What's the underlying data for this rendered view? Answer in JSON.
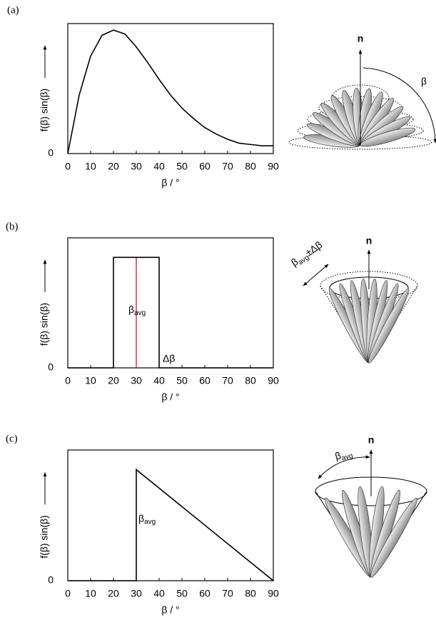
{
  "chart_data": [
    {
      "type": "line",
      "label": "(a)",
      "xlabel": "β / °",
      "ylabel": "f(β) sin(β)",
      "x": [
        0,
        5,
        10,
        15,
        20,
        25,
        30,
        35,
        40,
        45,
        50,
        55,
        60,
        65,
        70,
        75,
        80,
        85,
        90
      ],
      "series": [
        {
          "color": "#000000",
          "values": [
            0,
            0.45,
            0.75,
            0.91,
            0.95,
            0.92,
            0.82,
            0.7,
            0.57,
            0.45,
            0.35,
            0.27,
            0.2,
            0.15,
            0.11,
            0.08,
            0.07,
            0.06,
            0.06
          ]
        }
      ],
      "xlim": [
        0,
        90
      ],
      "xticks": [
        0,
        10,
        20,
        30,
        40,
        50,
        60,
        70,
        80,
        90
      ],
      "ylim": [
        0,
        1
      ],
      "yticks": [
        0
      ]
    },
    {
      "type": "line",
      "label": "(b)",
      "xlabel": "β / °",
      "ylabel": "f(β) sin(β)",
      "x": [
        0,
        20,
        20,
        40,
        40,
        90
      ],
      "series": [
        {
          "color": "#000000",
          "values": [
            0,
            0,
            0.85,
            0.85,
            0,
            0
          ]
        }
      ],
      "vline": {
        "x": 30,
        "top": 0.85,
        "color": "#cc2929"
      },
      "annotations": [
        {
          "text": "β",
          "sub": "avg"
        },
        {
          "text": "Δβ"
        }
      ],
      "xlim": [
        0,
        90
      ],
      "xticks": [
        0,
        10,
        20,
        30,
        40,
        50,
        60,
        70,
        80,
        90
      ],
      "ylim": [
        0,
        1
      ],
      "yticks": [
        0
      ]
    },
    {
      "type": "line",
      "label": "(c)",
      "xlabel": "β / °",
      "ylabel": "f(β) sin(β)",
      "x": [
        0,
        30,
        30,
        90
      ],
      "series": [
        {
          "color": "#000000",
          "values": [
            0,
            0,
            0.85,
            0
          ]
        }
      ],
      "annotations": [
        {
          "text": "β",
          "sub": "avg"
        }
      ],
      "xlim": [
        0,
        90
      ],
      "xticks": [
        0,
        10,
        20,
        30,
        40,
        50,
        60,
        70,
        80,
        90
      ],
      "ylim": [
        0,
        1
      ],
      "yticks": [
        0
      ]
    }
  ],
  "diagrams": {
    "normal": "n",
    "angle": "β",
    "spread": {
      "text": "β",
      "sub": "avg",
      "rest": "±Δβ"
    },
    "average": {
      "text": "β",
      "sub": "avg"
    }
  }
}
